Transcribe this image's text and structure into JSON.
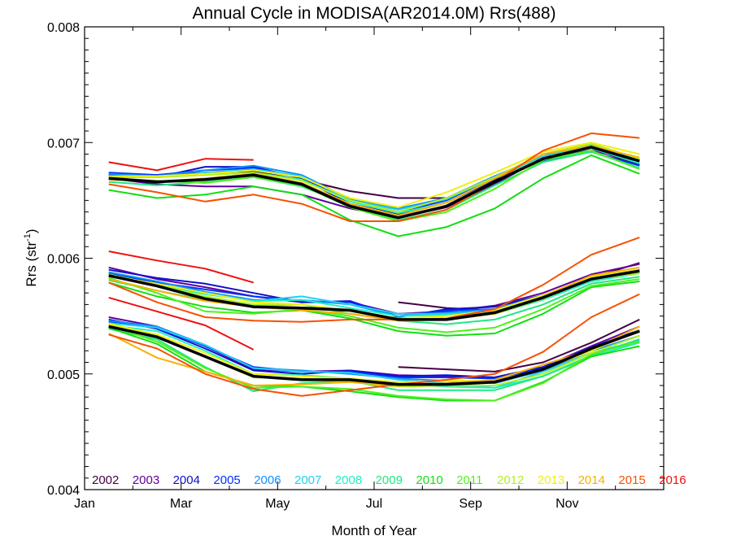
{
  "chart_data": {
    "type": "line",
    "title": "Annual Cycle in MODISA(AR2014.0M) Rrs(488)",
    "xlabel": "Month of Year",
    "ylabel_main": "Rrs (str",
    "ylabel_sup": "-1",
    "ylabel_close": ")",
    "xlim": [
      1,
      13
    ],
    "ylim": [
      0.004,
      0.008
    ],
    "x_ticks": [
      {
        "value": 1,
        "label": "Jan"
      },
      {
        "value": 3,
        "label": "Mar"
      },
      {
        "value": 5,
        "label": "May"
      },
      {
        "value": 7,
        "label": "Jul"
      },
      {
        "value": 9,
        "label": "Sep"
      },
      {
        "value": 11,
        "label": "Nov"
      }
    ],
    "y_ticks": [
      {
        "value": 0.004,
        "label": "0.004"
      },
      {
        "value": 0.005,
        "label": "0.005"
      },
      {
        "value": 0.006,
        "label": "0.006"
      },
      {
        "value": 0.007,
        "label": "0.007"
      },
      {
        "value": 0.008,
        "label": "0.008"
      }
    ],
    "x": [
      1.5,
      2.5,
      3.5,
      4.5,
      5.5,
      6.5,
      7.5,
      8.5,
      9.5,
      10.5,
      11.5,
      12.5
    ],
    "years": [
      "2002",
      "2003",
      "2004",
      "2005",
      "2006",
      "2007",
      "2008",
      "2009",
      "2010",
      "2011",
      "2012",
      "2013",
      "2014",
      "2015",
      "2016"
    ],
    "year_colors": [
      "#440044",
      "#6000a0",
      "#1010c8",
      "#0030ff",
      "#1090ff",
      "#20d0f0",
      "#20f0c0",
      "#20e880",
      "#10e010",
      "#50f020",
      "#b0f020",
      "#f0f010",
      "#f8b000",
      "#f85000",
      "#f01010"
    ],
    "mean_color": "#000000",
    "series": [
      {
        "group": "upper",
        "year_index": 0,
        "values": [
          6.72,
          6.72,
          6.74,
          6.75,
          6.68,
          6.58,
          6.52,
          6.52,
          6.7,
          6.9,
          6.95,
          6.8
        ]
      },
      {
        "group": "upper",
        "year_index": 1,
        "values": [
          6.69,
          6.64,
          6.62,
          6.62,
          6.55,
          6.43,
          6.35,
          6.44,
          6.64,
          6.87,
          6.93,
          6.84
        ]
      },
      {
        "group": "upper",
        "year_index": 2,
        "values": [
          6.72,
          6.7,
          6.79,
          6.79,
          6.69,
          6.47,
          6.38,
          6.48,
          6.68,
          6.86,
          6.97,
          6.81
        ]
      },
      {
        "group": "upper",
        "year_index": 3,
        "values": [
          6.74,
          6.72,
          6.76,
          6.78,
          6.7,
          6.5,
          6.4,
          6.5,
          6.7,
          6.84,
          6.92,
          6.8
        ]
      },
      {
        "group": "upper",
        "year_index": 4,
        "values": [
          6.73,
          6.71,
          6.76,
          6.8,
          6.72,
          6.51,
          6.43,
          6.52,
          6.71,
          6.88,
          6.96,
          6.84
        ]
      },
      {
        "group": "upper",
        "year_index": 5,
        "values": [
          6.7,
          6.7,
          6.74,
          6.77,
          6.71,
          6.5,
          6.42,
          6.51,
          6.7,
          6.88,
          6.98,
          6.85
        ]
      },
      {
        "group": "upper",
        "year_index": 6,
        "values": [
          6.71,
          6.7,
          6.72,
          6.74,
          6.68,
          6.49,
          6.39,
          6.48,
          6.69,
          6.86,
          6.95,
          6.82
        ]
      },
      {
        "group": "upper",
        "year_index": 7,
        "values": [
          6.66,
          6.63,
          6.66,
          6.7,
          6.62,
          6.46,
          6.33,
          6.42,
          6.63,
          6.83,
          6.92,
          6.78
        ]
      },
      {
        "group": "upper",
        "year_index": 8,
        "values": [
          6.59,
          6.52,
          6.55,
          6.62,
          6.55,
          6.33,
          6.19,
          6.27,
          6.43,
          6.69,
          6.89,
          6.73
        ]
      },
      {
        "group": "upper",
        "year_index": 9,
        "values": [
          6.69,
          6.67,
          6.65,
          6.7,
          6.63,
          6.44,
          6.32,
          6.4,
          6.6,
          6.85,
          6.93,
          6.77
        ]
      },
      {
        "group": "upper",
        "year_index": 10,
        "values": [
          6.7,
          6.7,
          6.72,
          6.74,
          6.67,
          6.5,
          6.4,
          6.52,
          6.7,
          6.9,
          6.99,
          6.86
        ]
      },
      {
        "group": "upper",
        "year_index": 11,
        "values": [
          6.71,
          6.71,
          6.73,
          6.76,
          6.7,
          6.52,
          6.44,
          6.57,
          6.74,
          6.92,
          7.0,
          6.9
        ]
      },
      {
        "group": "upper",
        "year_index": 12,
        "values": [
          6.68,
          6.66,
          6.69,
          6.73,
          6.65,
          6.47,
          6.37,
          6.48,
          6.69,
          6.9,
          6.97,
          6.87
        ]
      },
      {
        "group": "upper",
        "year_index": 13,
        "values": [
          6.64,
          6.57,
          6.49,
          6.55,
          6.47,
          6.32,
          6.32,
          6.42,
          6.66,
          6.93,
          7.08,
          7.04
        ]
      },
      {
        "group": "upper",
        "year_index": 14,
        "values": [
          6.83,
          6.76,
          6.86,
          6.85,
          null,
          null,
          null,
          null,
          null,
          null,
          null,
          null
        ]
      },
      {
        "group": "middle",
        "year_index": 0,
        "values": [
          null,
          null,
          null,
          null,
          null,
          null,
          5.62,
          5.57,
          5.55,
          5.67,
          5.83,
          5.96
        ]
      },
      {
        "group": "middle",
        "year_index": 1,
        "values": [
          5.92,
          5.82,
          5.75,
          5.67,
          5.62,
          5.62,
          5.52,
          5.54,
          5.59,
          5.7,
          5.86,
          5.95
        ]
      },
      {
        "group": "middle",
        "year_index": 2,
        "values": [
          5.9,
          5.83,
          5.78,
          5.7,
          5.62,
          5.63,
          5.49,
          5.56,
          5.58,
          5.68,
          5.83,
          5.9
        ]
      },
      {
        "group": "middle",
        "year_index": 3,
        "values": [
          5.87,
          5.79,
          5.73,
          5.67,
          5.63,
          5.62,
          5.5,
          5.55,
          5.56,
          5.66,
          5.84,
          5.9
        ]
      },
      {
        "group": "middle",
        "year_index": 4,
        "values": [
          5.88,
          5.8,
          5.71,
          5.64,
          5.64,
          5.6,
          5.5,
          5.53,
          5.56,
          5.68,
          5.83,
          5.89
        ]
      },
      {
        "group": "middle",
        "year_index": 5,
        "values": [
          5.84,
          5.78,
          5.7,
          5.63,
          5.67,
          5.6,
          5.52,
          5.52,
          5.54,
          5.66,
          5.83,
          5.88
        ]
      },
      {
        "group": "middle",
        "year_index": 6,
        "values": [
          5.86,
          5.77,
          5.69,
          5.63,
          5.64,
          5.57,
          5.5,
          5.51,
          5.52,
          5.64,
          5.8,
          5.87
        ]
      },
      {
        "group": "middle",
        "year_index": 7,
        "values": [
          5.81,
          5.72,
          5.64,
          5.59,
          5.6,
          5.52,
          5.46,
          5.43,
          5.47,
          5.6,
          5.78,
          5.84
        ]
      },
      {
        "group": "middle",
        "year_index": 8,
        "values": [
          5.79,
          5.67,
          5.58,
          5.53,
          5.55,
          5.48,
          5.37,
          5.33,
          5.35,
          5.52,
          5.75,
          5.8
        ]
      },
      {
        "group": "middle",
        "year_index": 9,
        "values": [
          5.83,
          5.7,
          5.54,
          5.52,
          5.56,
          5.5,
          5.4,
          5.36,
          5.4,
          5.56,
          5.76,
          5.82
        ]
      },
      {
        "group": "middle",
        "year_index": 10,
        "values": [
          5.86,
          5.77,
          5.67,
          5.6,
          5.6,
          5.55,
          5.46,
          5.47,
          5.52,
          5.65,
          5.82,
          5.87
        ]
      },
      {
        "group": "middle",
        "year_index": 11,
        "values": [
          5.85,
          5.78,
          5.7,
          5.62,
          5.6,
          5.55,
          5.48,
          5.5,
          5.55,
          5.68,
          5.84,
          5.9
        ]
      },
      {
        "group": "middle",
        "year_index": 12,
        "values": [
          5.82,
          5.72,
          5.63,
          5.58,
          5.55,
          5.52,
          5.46,
          5.47,
          5.52,
          5.67,
          5.85,
          5.92
        ]
      },
      {
        "group": "middle",
        "year_index": 13,
        "values": [
          5.79,
          5.62,
          5.49,
          5.46,
          5.45,
          5.47,
          5.47,
          5.48,
          5.56,
          5.77,
          6.03,
          6.18
        ]
      },
      {
        "group": "middle",
        "year_index": 14,
        "values": [
          6.06,
          5.98,
          5.91,
          5.79,
          null,
          null,
          null,
          null,
          null,
          null,
          null,
          null
        ]
      },
      {
        "group": "lower",
        "year_index": 0,
        "values": [
          null,
          null,
          null,
          null,
          null,
          null,
          5.06,
          5.04,
          5.02,
          5.1,
          5.27,
          5.47
        ]
      },
      {
        "group": "lower",
        "year_index": 1,
        "values": [
          5.49,
          5.41,
          5.24,
          5.04,
          5.02,
          5.03,
          4.99,
          4.98,
          4.97,
          5.06,
          5.24,
          5.41
        ]
      },
      {
        "group": "lower",
        "year_index": 2,
        "values": [
          5.47,
          5.39,
          5.22,
          5.03,
          5.0,
          5.03,
          4.98,
          4.99,
          4.97,
          5.06,
          5.22,
          5.37
        ]
      },
      {
        "group": "lower",
        "year_index": 3,
        "values": [
          5.45,
          5.4,
          5.24,
          5.06,
          5.02,
          5.02,
          4.97,
          4.97,
          4.96,
          5.05,
          5.23,
          5.38
        ]
      },
      {
        "group": "lower",
        "year_index": 4,
        "values": [
          5.46,
          5.41,
          5.25,
          5.05,
          5.03,
          5.0,
          4.96,
          4.94,
          4.92,
          5.03,
          5.2,
          5.33
        ]
      },
      {
        "group": "lower",
        "year_index": 5,
        "values": [
          5.44,
          5.4,
          5.25,
          5.05,
          5.02,
          5.01,
          4.95,
          4.92,
          4.88,
          5.02,
          5.18,
          5.29
        ]
      },
      {
        "group": "lower",
        "year_index": 6,
        "values": [
          5.42,
          5.37,
          5.2,
          5.0,
          4.99,
          4.96,
          4.91,
          4.89,
          4.88,
          4.98,
          5.15,
          5.27
        ]
      },
      {
        "group": "lower",
        "year_index": 7,
        "values": [
          5.39,
          5.3,
          5.06,
          4.85,
          4.92,
          4.94,
          4.86,
          4.86,
          4.86,
          4.98,
          5.16,
          5.3
        ]
      },
      {
        "group": "lower",
        "year_index": 8,
        "values": [
          5.4,
          5.26,
          5.02,
          4.9,
          4.89,
          4.85,
          4.8,
          4.77,
          4.77,
          4.93,
          5.15,
          5.24
        ]
      },
      {
        "group": "lower",
        "year_index": 9,
        "values": [
          5.42,
          5.28,
          5.05,
          4.88,
          4.89,
          4.87,
          4.81,
          4.78,
          4.77,
          4.92,
          5.17,
          5.28
        ]
      },
      {
        "group": "lower",
        "year_index": 10,
        "values": [
          5.44,
          5.33,
          5.15,
          4.97,
          4.96,
          4.93,
          4.89,
          4.9,
          4.9,
          5.0,
          5.18,
          5.33
        ]
      },
      {
        "group": "lower",
        "year_index": 11,
        "values": [
          5.43,
          5.34,
          5.18,
          5.0,
          4.98,
          4.96,
          4.93,
          4.94,
          4.94,
          5.04,
          5.2,
          5.38
        ]
      },
      {
        "group": "lower",
        "year_index": 12,
        "values": [
          5.35,
          5.14,
          5.02,
          4.9,
          4.91,
          4.93,
          4.9,
          4.92,
          4.95,
          5.08,
          5.21,
          5.41
        ]
      },
      {
        "group": "lower",
        "year_index": 13,
        "values": [
          5.34,
          5.22,
          5.0,
          4.87,
          4.81,
          4.86,
          4.91,
          4.95,
          5.0,
          5.19,
          5.49,
          5.69
        ]
      },
      {
        "group": "lower",
        "year_index": 14,
        "values": [
          5.66,
          5.54,
          5.42,
          5.21,
          null,
          null,
          null,
          null,
          null,
          null,
          null,
          null
        ]
      }
    ],
    "means": [
      {
        "group": "upper",
        "values": [
          6.69,
          6.66,
          6.68,
          6.72,
          6.64,
          6.45,
          6.35,
          6.45,
          6.66,
          6.86,
          6.96,
          6.84
        ]
      },
      {
        "group": "middle",
        "values": [
          5.85,
          5.76,
          5.65,
          5.58,
          5.57,
          5.55,
          5.47,
          5.47,
          5.53,
          5.66,
          5.82,
          5.89
        ]
      },
      {
        "group": "lower",
        "values": [
          5.41,
          5.32,
          5.15,
          4.98,
          4.95,
          4.95,
          4.91,
          4.91,
          4.93,
          5.04,
          5.22,
          5.37
        ]
      }
    ],
    "value_scale_note": "series values in units of 0.001 str^-1"
  }
}
